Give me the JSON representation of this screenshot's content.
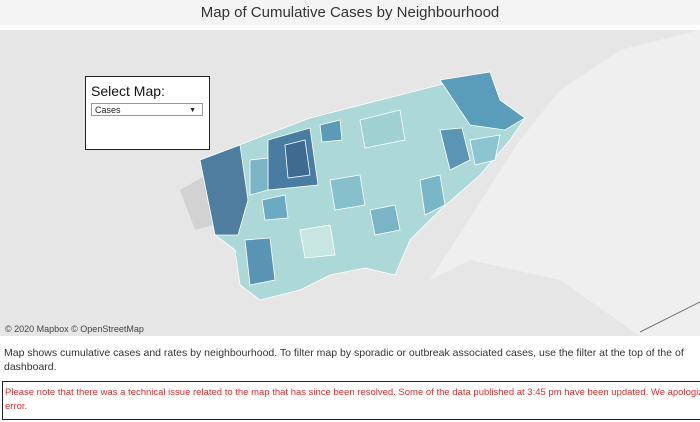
{
  "header": {
    "title": "Map of Cumulative Cases by Neighbourhood"
  },
  "map": {
    "select_label": "Select Map:",
    "select_value": "Cases",
    "attribution": "© 2020 Mapbox © OpenStreetMap"
  },
  "description": "Map shows cumulative cases and rates by neighbourhood. To filter map by sporadic or outbreak associated cases, use the filter at the top of the of dashboard.",
  "notice": "Please note that there was a technical issue related to the map that has since been resolved. Some of the data published at 3:45 pm have been updated. We apologize for this error."
}
